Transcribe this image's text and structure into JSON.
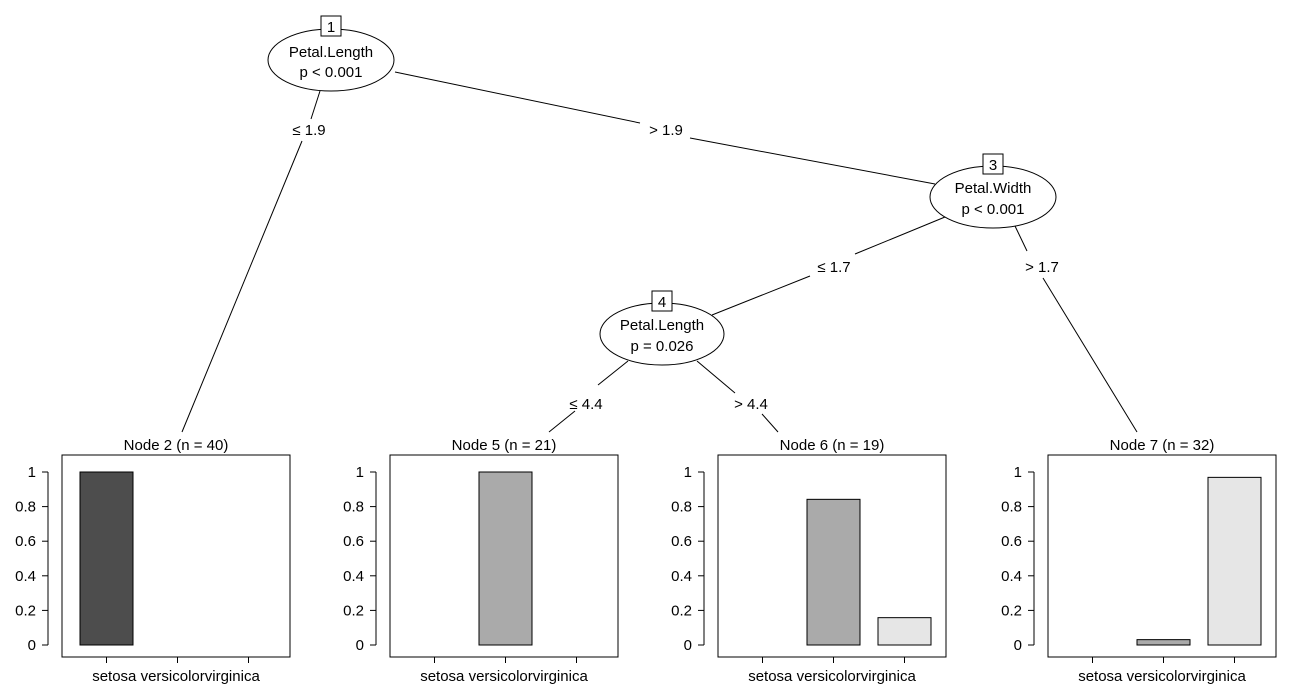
{
  "chart_data": {
    "type": "decision-tree",
    "inner_nodes": [
      {
        "id": "1",
        "variable": "Petal.Length",
        "pvalue": "p < 0.001"
      },
      {
        "id": "3",
        "variable": "Petal.Width",
        "pvalue": "p < 0.001"
      },
      {
        "id": "4",
        "variable": "Petal.Length",
        "pvalue": "p = 0.026"
      }
    ],
    "edges": [
      {
        "from": "1",
        "to": "2",
        "label": "≤ 1.9"
      },
      {
        "from": "1",
        "to": "3",
        "label": "> 1.9"
      },
      {
        "from": "3",
        "to": "4",
        "label": "≤ 1.7"
      },
      {
        "from": "3",
        "to": "7",
        "label": "> 1.7"
      },
      {
        "from": "4",
        "to": "5",
        "label": "≤ 4.4"
      },
      {
        "from": "4",
        "to": "6",
        "label": "> 4.4"
      }
    ],
    "terminal_nodes": [
      {
        "id": "2",
        "title": "Node 2 (n = 40)",
        "n": 40,
        "values": [
          1.0,
          0,
          0
        ]
      },
      {
        "id": "5",
        "title": "Node 5 (n = 21)",
        "n": 21,
        "values": [
          0,
          1.0,
          0
        ]
      },
      {
        "id": "6",
        "title": "Node 6 (n = 19)",
        "n": 19,
        "values": [
          0,
          0.842,
          0.158
        ]
      },
      {
        "id": "7",
        "title": "Node 7 (n = 32)",
        "n": 32,
        "values": [
          0,
          0.031,
          0.969
        ]
      }
    ],
    "categories": [
      "setosa",
      "versicolor",
      "virginica"
    ],
    "category_colors": [
      "#4d4d4d",
      "#aaaaaa",
      "#e6e6e6"
    ],
    "yticks": [
      "0",
      "0.2",
      "0.4",
      "0.6",
      "0.8",
      "1"
    ],
    "ylim": [
      0,
      1
    ]
  }
}
